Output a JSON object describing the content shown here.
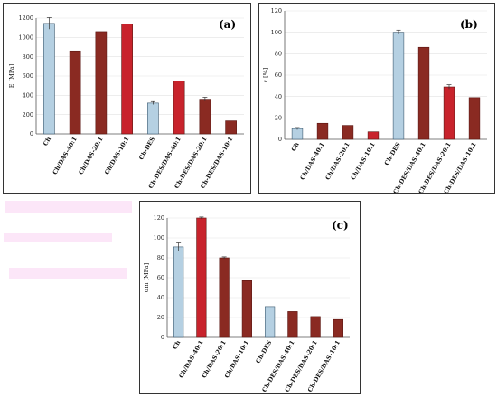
{
  "colors": {
    "light_blue": "#b5d0e2",
    "light_blue_stroke": "#3d5a70",
    "red": "#c8232c",
    "dark_red": "#8a2a22"
  },
  "chart_data": [
    {
      "panel_label": "(a)",
      "type": "bar",
      "ylabel": "E [MPa]",
      "ylim": [
        0,
        1200
      ],
      "yticks": [
        0,
        200,
        400,
        600,
        800,
        1000,
        1200
      ],
      "categories": [
        "Ch",
        "Ch/DAS-40:1",
        "Ch/DAS-20:1",
        "Ch/DAS-10:1",
        "Ch-DES",
        "Ch-DES/DAS-40:1",
        "Ch-DES/DAS-20:1",
        "Ch-DES/DAS-10:1"
      ],
      "values": [
        1145,
        860,
        1060,
        1140,
        320,
        550,
        360,
        135
      ],
      "errors": [
        60,
        0,
        0,
        0,
        15,
        0,
        20,
        0
      ],
      "bar_colors": [
        "light_blue",
        "dark_red",
        "dark_red",
        "red",
        "light_blue",
        "red",
        "dark_red",
        "dark_red"
      ]
    },
    {
      "panel_label": "(b)",
      "type": "bar",
      "ylabel": "ε [%]",
      "ylim": [
        0,
        120
      ],
      "yticks": [
        0,
        20,
        40,
        60,
        80,
        100,
        120
      ],
      "categories": [
        "Ch",
        "Ch/DAS-40:1",
        "Ch/DAS-20:1",
        "Ch/DAS-10:1",
        "Ch-DES",
        "Ch-DES/DAS-40:1",
        "Ch-DES/DAS-20:1",
        "Ch-DES/DAS-10:1"
      ],
      "values": [
        10,
        15,
        13,
        7,
        100,
        86,
        49,
        39
      ],
      "errors": [
        1,
        0,
        0,
        0,
        2,
        0,
        2,
        0
      ],
      "bar_colors": [
        "light_blue",
        "dark_red",
        "dark_red",
        "red",
        "light_blue",
        "dark_red",
        "red",
        "dark_red"
      ]
    },
    {
      "panel_label": "(c)",
      "type": "bar",
      "ylabel": "σm [MPa]",
      "ylim": [
        0,
        120
      ],
      "yticks": [
        0,
        20,
        40,
        60,
        80,
        100,
        120
      ],
      "categories": [
        "Ch",
        "Ch/DAS-40:1",
        "Ch/DAS-20:1",
        "Ch/DAS-10:1",
        "Ch-DES",
        "Ch-DES/DAS-40:1",
        "Ch-DES/DAS-20:1",
        "Ch-DES/DAS-10:1"
      ],
      "values": [
        91,
        120,
        80,
        57,
        31,
        26,
        21,
        18
      ],
      "errors": [
        4,
        1,
        1,
        0,
        0,
        0,
        0,
        0
      ],
      "bar_colors": [
        "light_blue",
        "red",
        "dark_red",
        "dark_red",
        "light_blue",
        "dark_red",
        "dark_red",
        "dark_red"
      ]
    }
  ]
}
